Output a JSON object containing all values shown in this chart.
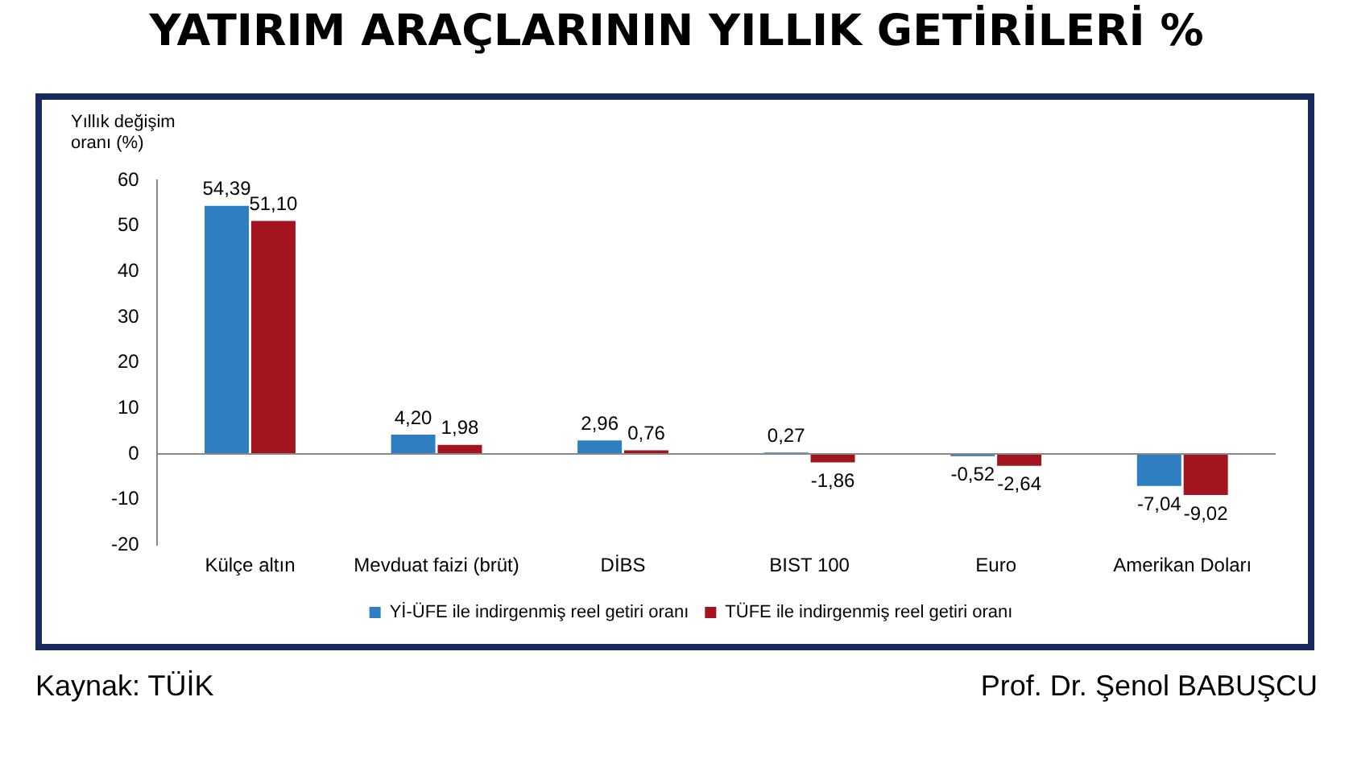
{
  "chart_data": {
    "type": "bar",
    "title": "YATIRIM ARAÇLARININ YILLIK GETİRİLERİ %",
    "ylabel": "Yıllık değişim oranı (%)",
    "categories": [
      "Külçe altın",
      "Mevduat faizi (brüt)",
      "DİBS",
      "BIST 100",
      "Euro",
      "Amerikan Doları"
    ],
    "series": [
      {
        "name": "Yİ-ÜFE ile indirgenmiş reel getiri oranı",
        "color": "#2f7ec2",
        "values": [
          54.39,
          4.2,
          2.96,
          0.27,
          -0.52,
          -7.04
        ],
        "value_labels": [
          "54,39",
          "4,20",
          "2,96",
          "0,27",
          "-0,52",
          "-7,04"
        ]
      },
      {
        "name": "TÜFE ile indirgenmiş reel getiri oranı",
        "color": "#a3141f",
        "values": [
          51.1,
          1.98,
          0.76,
          -1.86,
          -2.64,
          -9.02
        ],
        "value_labels": [
          "51,10",
          "1,98",
          "0,76",
          "-1,86",
          "-2,64",
          "-9,02"
        ]
      }
    ],
    "ylim": [
      -20,
      60
    ],
    "yticks": [
      -20,
      -10,
      0,
      10,
      20,
      30,
      40,
      50,
      60
    ],
    "grid": false,
    "legend": "bottom",
    "ref_lines": [
      {
        "axis": "y",
        "value": 0,
        "color": "#888888"
      }
    ],
    "annotations": [
      "Kaynak: TÜİK",
      "Prof. Dr. Şenol BABUŞCU"
    ]
  }
}
